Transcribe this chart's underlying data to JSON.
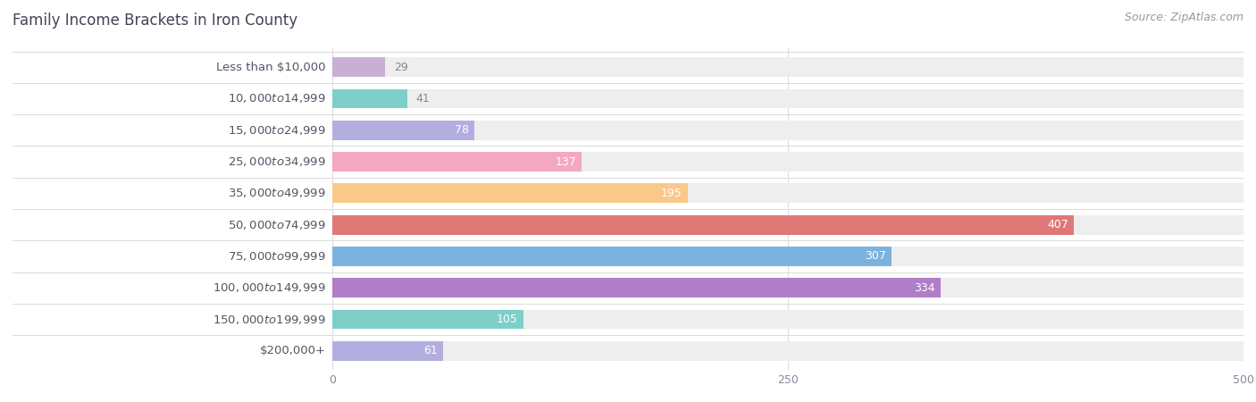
{
  "title": "Family Income Brackets in Iron County",
  "source": "Source: ZipAtlas.com",
  "categories": [
    "Less than $10,000",
    "$10,000 to $14,999",
    "$15,000 to $24,999",
    "$25,000 to $34,999",
    "$35,000 to $49,999",
    "$50,000 to $74,999",
    "$75,000 to $99,999",
    "$100,000 to $149,999",
    "$150,000 to $199,999",
    "$200,000+"
  ],
  "values": [
    29,
    41,
    78,
    137,
    195,
    407,
    307,
    334,
    105,
    61
  ],
  "bar_colors": [
    "#c9aed6",
    "#7ececa",
    "#b3aee0",
    "#f4a8c0",
    "#f9c98a",
    "#e07878",
    "#7ab3e0",
    "#b07ec8",
    "#7ececa",
    "#b3aee0"
  ],
  "xlim": [
    0,
    500
  ],
  "xticks": [
    0,
    250,
    500
  ],
  "background_color": "#ffffff",
  "bar_bg_color": "#eeeeee",
  "title_color": "#444455",
  "label_color": "#555566",
  "tick_color": "#888899",
  "value_color_inside": "#ffffff",
  "value_color_outside": "#888888",
  "source_color": "#999999",
  "title_fontsize": 12,
  "label_fontsize": 9.5,
  "value_fontsize": 9,
  "source_fontsize": 9,
  "tick_fontsize": 9
}
